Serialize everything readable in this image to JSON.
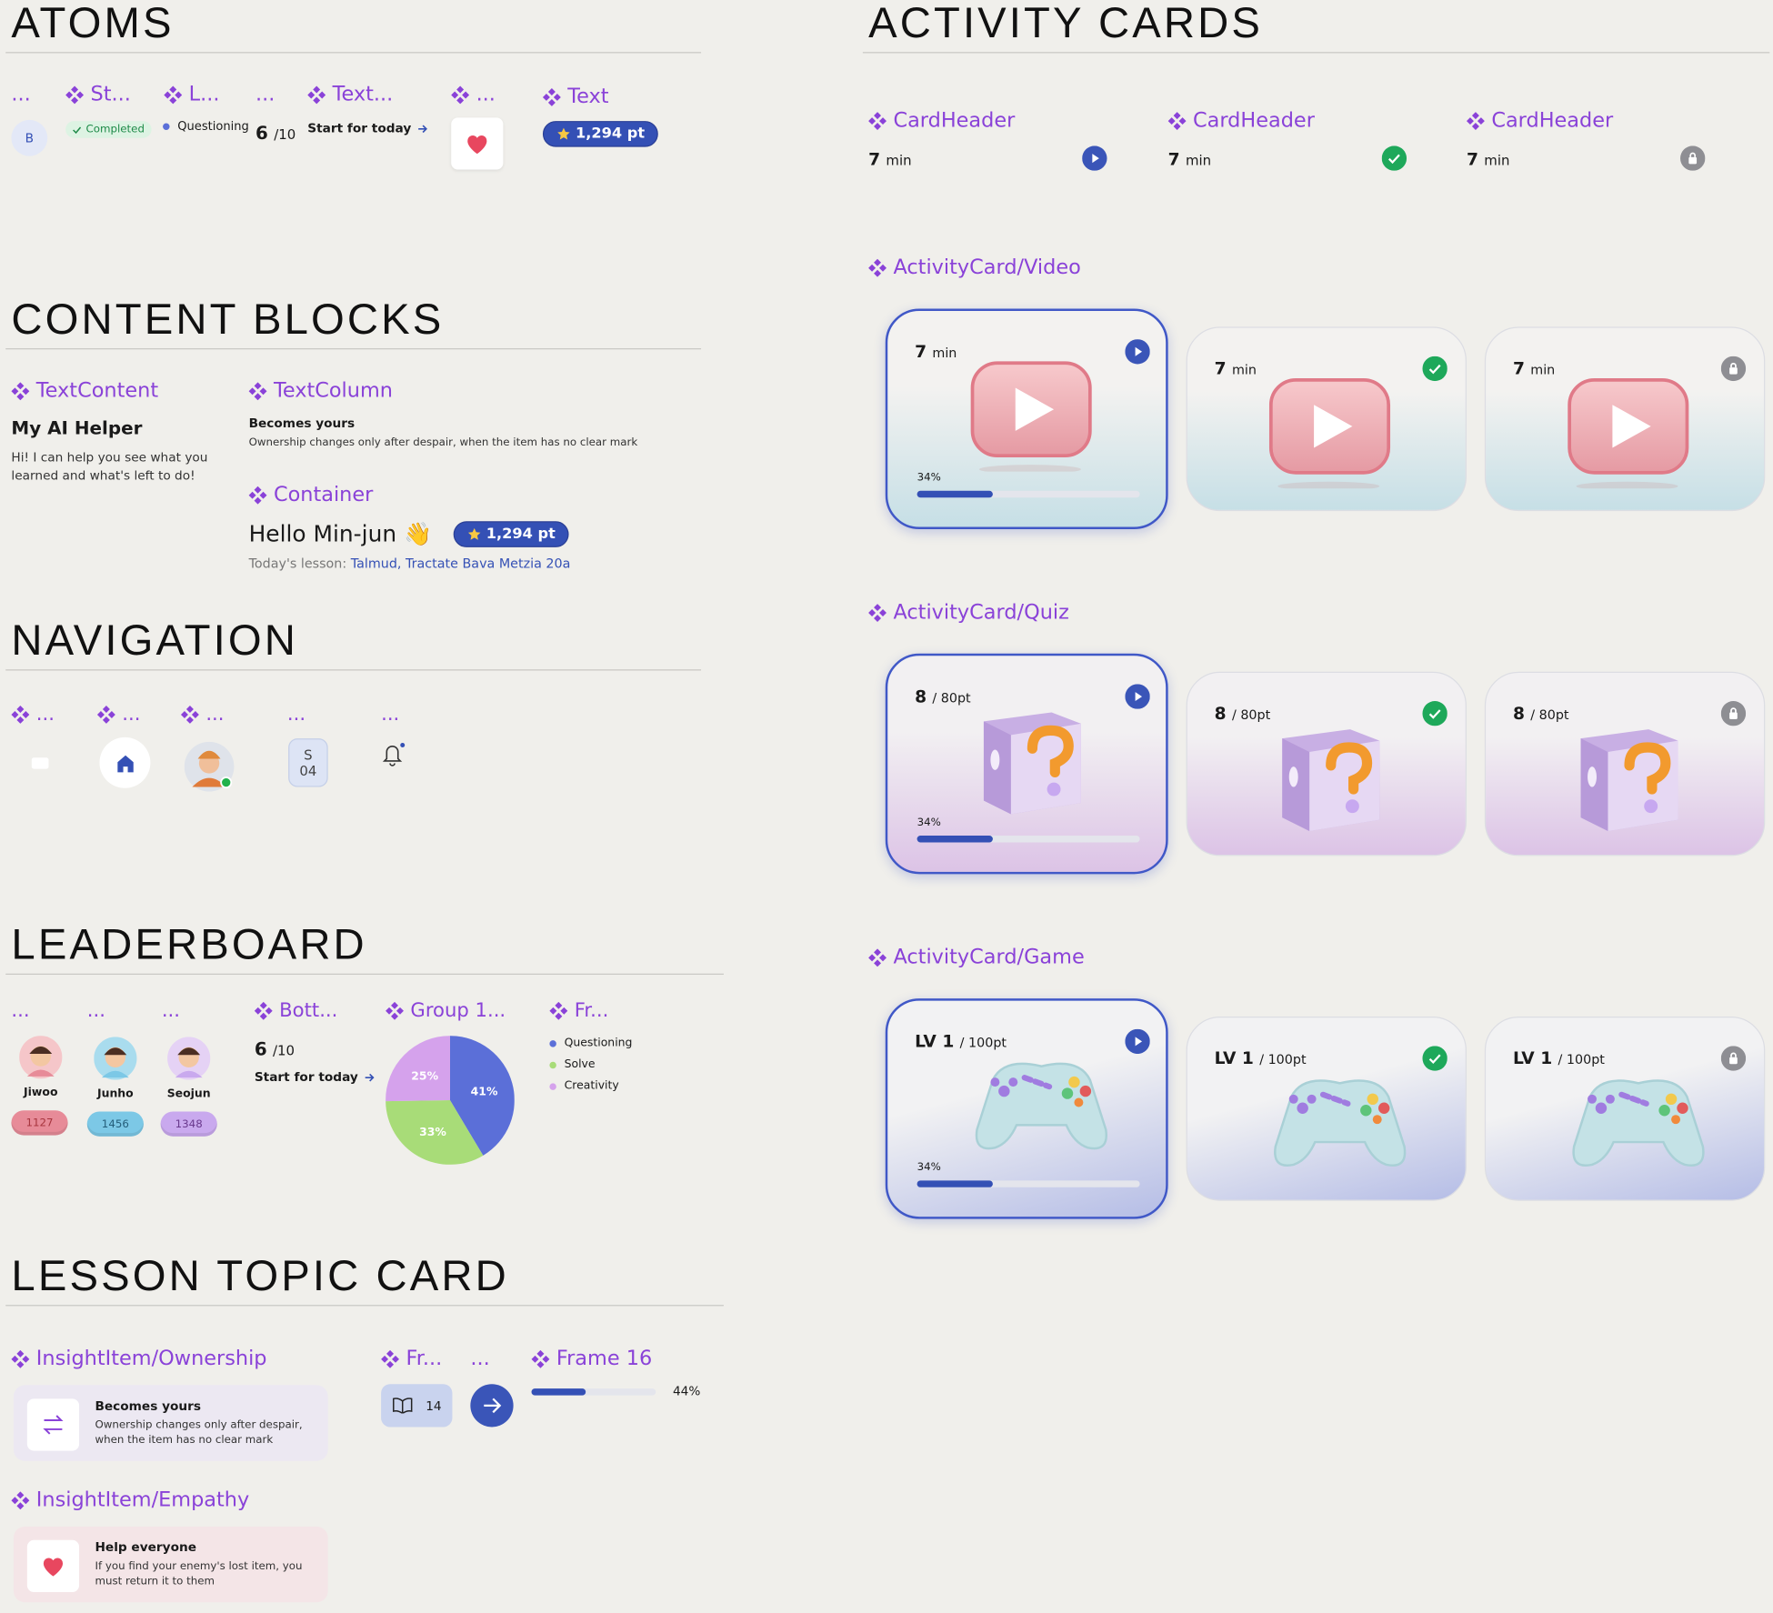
{
  "atoms": {
    "title": "ATOMS",
    "labels": [
      "...",
      "St...",
      "L...",
      "...",
      "Text...",
      "...",
      "Text"
    ],
    "avatar": "B",
    "status": "Completed",
    "tag": "Questioning",
    "score": "6",
    "score_total": "/10",
    "start": "Start for today",
    "points": "1,294 pt"
  },
  "content_blocks": {
    "title": "CONTENT BLOCKS",
    "text_content": {
      "label": "TextContent",
      "heading": "My AI Helper",
      "body": "Hi! I can help you see what you learned and what's left to do!"
    },
    "text_column": {
      "label": "TextColumn",
      "heading": "Becomes yours",
      "body": "Ownership changes only after despair, when the item has no clear mark"
    },
    "container": {
      "label": "Container",
      "greeting": "Hello Min-jun 👋",
      "points": "1,294 pt",
      "lesson_prefix": "Today's lesson:",
      "lesson": "Talmud, Tractate Bava Metzia 20a"
    }
  },
  "navigation": {
    "title": "NAVIGATION",
    "labels": [
      "...",
      "...",
      "...",
      "...",
      "..."
    ],
    "badge_letter": "S",
    "badge_number": "04"
  },
  "leaderboard": {
    "title": "LEADERBOARD",
    "labels": [
      "...",
      "...",
      "...",
      "Bott...",
      "Group 1...",
      "Fr..."
    ],
    "players": [
      {
        "name": "Jiwoo",
        "score": "1127"
      },
      {
        "name": "Junho",
        "score": "1456"
      },
      {
        "name": "Seojun",
        "score": "1348"
      }
    ],
    "score": "6",
    "score_total": "/10",
    "start": "Start for today",
    "pie": {
      "categories": [
        "Questioning",
        "Solve",
        "Creativity"
      ],
      "values": [
        41,
        33,
        25
      ],
      "value_labels": [
        "41%",
        "33%",
        "25%"
      ],
      "colors": [
        "#5b6fd8",
        "#a8dc78",
        "#d5a2ec"
      ]
    }
  },
  "lesson_topic_card": {
    "title": "LESSON TOPIC CARD",
    "insights": [
      {
        "label": "InsightItem/Ownership",
        "heading": "Becomes yours",
        "body": "Ownership changes only after despair, when the item has no clear mark"
      },
      {
        "label": "InsightItem/Empathy",
        "heading": "Help everyone",
        "body": "If you find your enemy's lost item, you must return it to them"
      }
    ],
    "labels": [
      "Fr...",
      "...",
      "Frame 16"
    ],
    "chapters": "14",
    "progress": {
      "value": 44,
      "label": "44%"
    }
  },
  "activity_cards": {
    "title": "ACTIVITY CARDS",
    "card_headers": [
      {
        "label": "CardHeader",
        "value": "7",
        "unit": "min"
      },
      {
        "label": "CardHeader",
        "value": "7",
        "unit": "min"
      },
      {
        "label": "CardHeader",
        "value": "7",
        "unit": "min"
      }
    ],
    "video": {
      "label": "ActivityCard/Video",
      "cards": [
        {
          "value": "7",
          "unit": "min"
        },
        {
          "value": "7",
          "unit": "min"
        },
        {
          "value": "7",
          "unit": "min"
        }
      ],
      "progress": {
        "value": 34,
        "label": "34%"
      }
    },
    "quiz": {
      "label": "ActivityCard/Quiz",
      "cards": [
        {
          "value": "8",
          "unit": "/ 80pt"
        },
        {
          "value": "8",
          "unit": "/ 80pt"
        },
        {
          "value": "8",
          "unit": "/ 80pt"
        }
      ],
      "progress": {
        "value": 34,
        "label": "34%"
      }
    },
    "game": {
      "label": "ActivityCard/Game",
      "cards": [
        {
          "value": "LV 1",
          "unit": "/ 100pt"
        },
        {
          "value": "LV 1",
          "unit": "/ 100pt"
        },
        {
          "value": "LV 1",
          "unit": "/ 100pt"
        }
      ],
      "progress": {
        "value": 34,
        "label": "34%"
      }
    }
  }
}
